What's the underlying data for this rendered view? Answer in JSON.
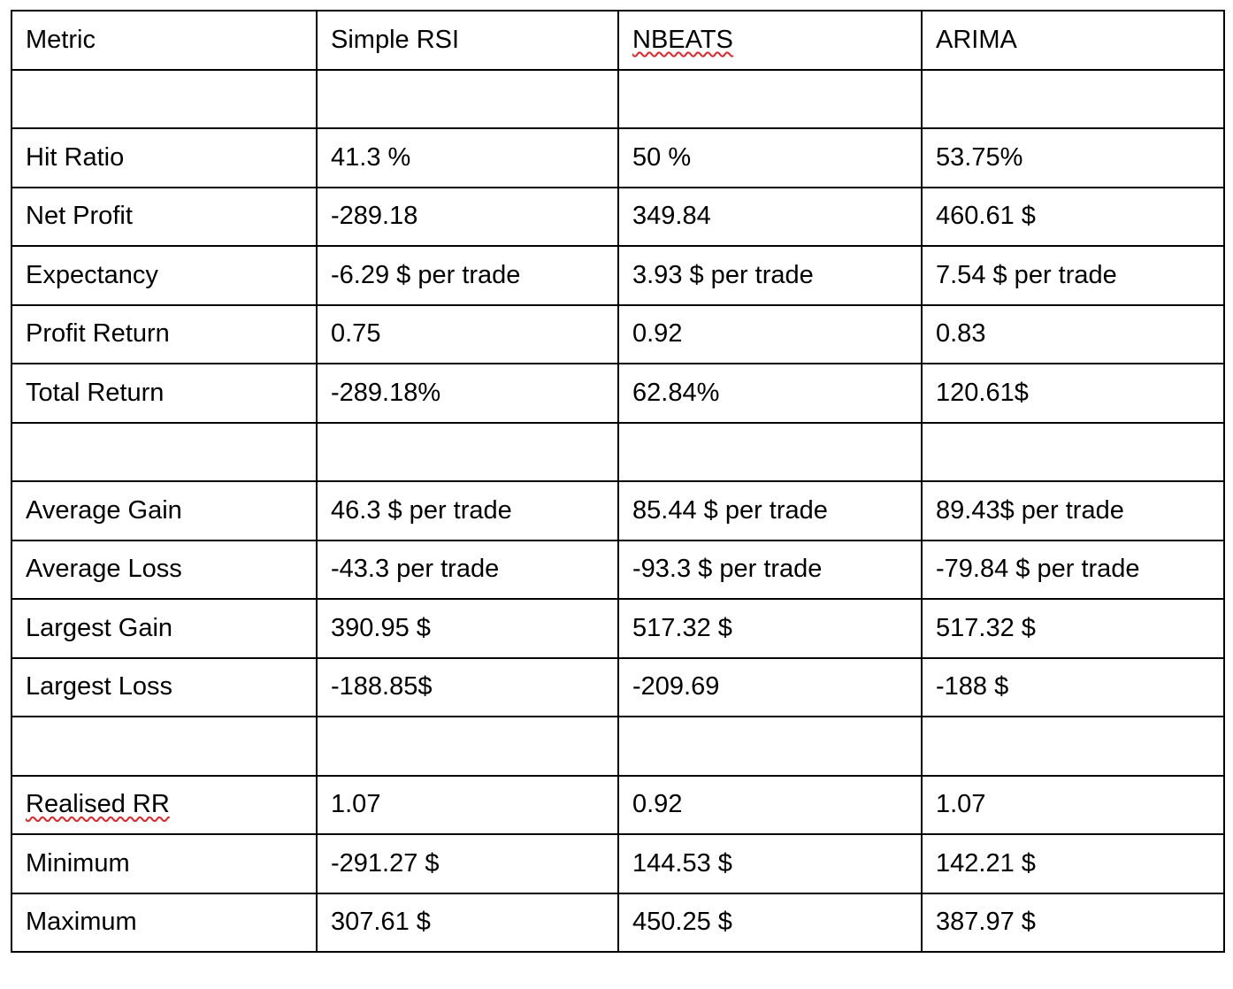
{
  "table": {
    "headers": [
      "Metric",
      "Simple RSI",
      "NBEATS",
      "ARIMA"
    ],
    "rows": [
      [
        "",
        "",
        "",
        ""
      ],
      [
        "Hit Ratio",
        "41.3 %",
        "50 %",
        "53.75%"
      ],
      [
        "Net Profit",
        "-289.18",
        "349.84",
        "460.61 $"
      ],
      [
        "Expectancy",
        "-6.29 $ per trade",
        "3.93 $ per trade",
        "7.54 $ per trade"
      ],
      [
        "Profit Return",
        "0.75",
        "0.92",
        "0.83"
      ],
      [
        "Total Return",
        "-289.18%",
        "62.84%",
        "120.61$"
      ],
      [
        "",
        "",
        "",
        ""
      ],
      [
        "Average Gain",
        "46.3 $ per trade",
        "85.44 $ per trade",
        "89.43$ per trade"
      ],
      [
        "Average Loss",
        "-43.3 per trade",
        "-93.3 $ per trade",
        "-79.84 $ per trade"
      ],
      [
        "Largest Gain",
        "390.95 $",
        "517.32 $",
        "517.32 $"
      ],
      [
        "Largest Loss",
        "-188.85$",
        "-209.69",
        "-188 $"
      ],
      [
        "",
        "",
        "",
        ""
      ],
      [
        "Realised RR",
        "1.07",
        "0.92",
        "1.07"
      ],
      [
        "Minimum",
        "-291.27 $",
        "144.53 $",
        "142.21 $"
      ],
      [
        "Maximum",
        "307.61 $",
        "450.25 $",
        "387.97 $"
      ]
    ]
  }
}
